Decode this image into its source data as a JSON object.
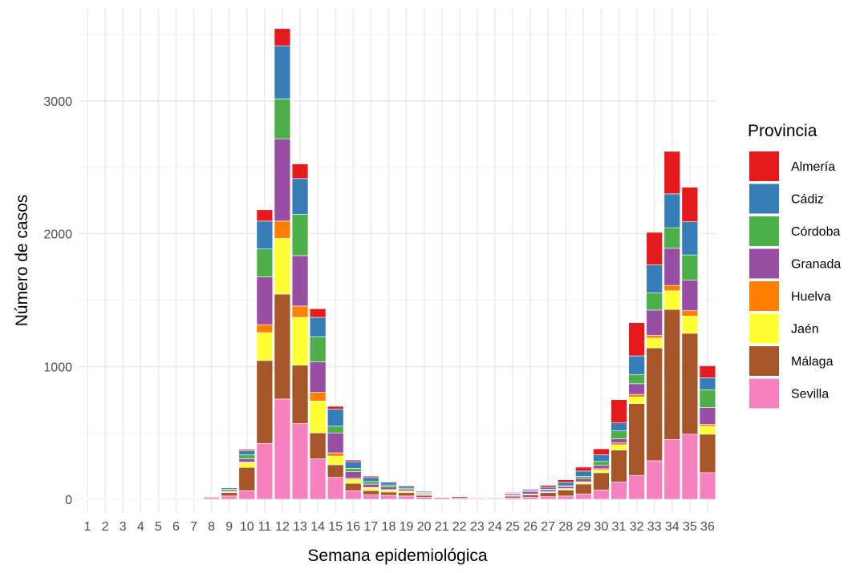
{
  "chart_data": {
    "type": "bar",
    "stacked": true,
    "xlabel": "Semana epidemiológica",
    "ylabel": "Número de casos",
    "ylim": [
      0,
      3600
    ],
    "yticks": [
      0,
      1000,
      2000,
      3000
    ],
    "grid": true,
    "legend": {
      "title": "Provincia",
      "placement": "right"
    },
    "categories": [
      "1",
      "2",
      "3",
      "4",
      "5",
      "6",
      "7",
      "8",
      "9",
      "10",
      "11",
      "12",
      "13",
      "14",
      "15",
      "16",
      "17",
      "18",
      "19",
      "20",
      "21",
      "22",
      "23",
      "24",
      "25",
      "26",
      "27",
      "28",
      "29",
      "30",
      "31",
      "32",
      "33",
      "34",
      "35",
      "36"
    ],
    "series": [
      {
        "name": "Sevilla",
        "color": "#F781BF",
        "values": [
          1,
          1,
          1,
          1,
          2,
          4,
          4,
          8,
          25,
          65,
          420,
          755,
          570,
          305,
          165,
          65,
          35,
          30,
          25,
          15,
          8,
          10,
          6,
          6,
          10,
          15,
          20,
          25,
          40,
          70,
          130,
          180,
          290,
          450,
          490,
          200
        ]
      },
      {
        "name": "Málaga",
        "color": "#A65628",
        "values": [
          1,
          1,
          1,
          1,
          1,
          4,
          4,
          8,
          25,
          175,
          625,
          790,
          440,
          195,
          95,
          55,
          30,
          25,
          25,
          15,
          7,
          10,
          6,
          6,
          13,
          18,
          30,
          45,
          75,
          130,
          240,
          540,
          850,
          980,
          760,
          290
        ]
      },
      {
        "name": "Jaén",
        "color": "#FFFF33",
        "values": [
          0,
          0,
          0,
          0,
          0,
          2,
          2,
          3,
          6,
          35,
          210,
          420,
          360,
          240,
          65,
          30,
          20,
          15,
          10,
          6,
          2,
          4,
          1,
          1,
          3,
          4,
          5,
          8,
          12,
          20,
          40,
          50,
          75,
          140,
          130,
          60
        ]
      },
      {
        "name": "Huelva",
        "color": "#FF7F00",
        "values": [
          0,
          0,
          0,
          0,
          0,
          1,
          0,
          1,
          2,
          5,
          60,
          130,
          85,
          65,
          25,
          8,
          4,
          3,
          2,
          2,
          1,
          1,
          1,
          1,
          2,
          2,
          2,
          3,
          5,
          10,
          15,
          20,
          20,
          40,
          40,
          15
        ]
      },
      {
        "name": "Granada",
        "color": "#984EA3",
        "values": [
          0,
          0,
          0,
          0,
          1,
          2,
          2,
          4,
          10,
          25,
          360,
          620,
          380,
          230,
          150,
          50,
          25,
          20,
          12,
          8,
          3,
          4,
          2,
          2,
          12,
          20,
          15,
          15,
          25,
          25,
          30,
          80,
          190,
          280,
          230,
          125
        ]
      },
      {
        "name": "Córdoba",
        "color": "#4DAF4A",
        "values": [
          0,
          0,
          0,
          0,
          0,
          1,
          1,
          3,
          8,
          30,
          210,
          300,
          310,
          190,
          50,
          25,
          20,
          15,
          10,
          6,
          2,
          2,
          1,
          1,
          2,
          3,
          4,
          6,
          15,
          30,
          60,
          70,
          130,
          155,
          190,
          135
        ]
      },
      {
        "name": "Cádiz",
        "color": "#377EB8",
        "values": [
          1,
          1,
          1,
          1,
          1,
          2,
          2,
          4,
          10,
          30,
          210,
          400,
          270,
          145,
          130,
          50,
          30,
          20,
          15,
          8,
          2,
          2,
          1,
          1,
          5,
          10,
          15,
          25,
          40,
          50,
          60,
          140,
          210,
          255,
          250,
          90
        ]
      },
      {
        "name": "Almería",
        "color": "#E41A1C",
        "values": [
          0,
          0,
          0,
          0,
          0,
          1,
          1,
          2,
          4,
          10,
          85,
          130,
          110,
          65,
          20,
          12,
          10,
          5,
          5,
          3,
          0,
          2,
          1,
          1,
          5,
          5,
          14,
          20,
          30,
          45,
          175,
          250,
          245,
          320,
          260,
          90
        ]
      }
    ]
  }
}
